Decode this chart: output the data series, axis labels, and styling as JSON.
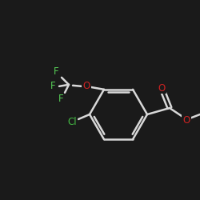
{
  "background_color": "#1a1a1a",
  "bond_color": "#d8d8d8",
  "atom_colors": {
    "O": "#cc2222",
    "F": "#55cc55",
    "Cl": "#44bb44",
    "C": "#d8d8d8"
  },
  "figsize": [
    2.5,
    2.5
  ],
  "dpi": 100
}
